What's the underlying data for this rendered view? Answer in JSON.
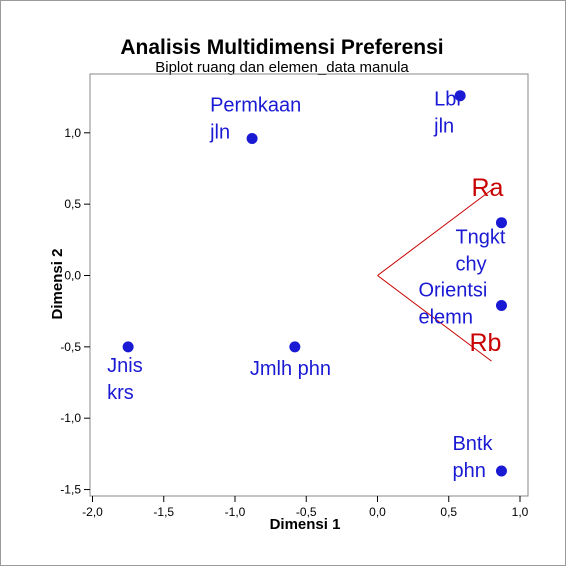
{
  "chart_data": {
    "type": "scatter",
    "title": "Analisis Multidimensi Preferensi",
    "subtitle": "Biplot ruang dan elemen_data manula",
    "xlabel": "Dimensi 1",
    "ylabel": "Dimensi 2",
    "xlim": [
      -2.0,
      1.0
    ],
    "ylim": [
      -1.5,
      1.35
    ],
    "xticks": [
      -2.0,
      -1.5,
      -1.0,
      -0.5,
      0.0,
      0.5,
      1.0
    ],
    "xtick_labels": [
      "-2,0",
      "-1,5",
      "-1,0",
      "-0,5",
      "0,0",
      "0,5",
      "1,0"
    ],
    "yticks": [
      1.0,
      0.5,
      0.0,
      -0.5,
      -1.0,
      -1.5
    ],
    "ytick_labels": [
      "1,0",
      "0,5",
      "0,0",
      "-0,5",
      "-1,0",
      "-1,5"
    ],
    "grid": false,
    "colors": {
      "points": "#1a1ad4",
      "vectors": "#c80000"
    },
    "points": [
      {
        "label_lines": [
          "Permkaan",
          "jln"
        ],
        "x": -0.88,
        "y": 0.96
      },
      {
        "label_lines": [
          "Lbr",
          "jln"
        ],
        "x": 0.58,
        "y": 1.26
      },
      {
        "label_lines": [
          "Tngkt",
          "chy"
        ],
        "x": 0.87,
        "y": 0.37
      },
      {
        "label_lines": [
          "Orientsi",
          "elemn"
        ],
        "x": 0.87,
        "y": -0.21
      },
      {
        "label_lines": [
          "Jnis",
          "krs"
        ],
        "x": -1.75,
        "y": -0.5
      },
      {
        "label_lines": [
          "Jmlh phn"
        ],
        "x": -0.58,
        "y": -0.5
      },
      {
        "label_lines": [
          "Bntk",
          "phn"
        ],
        "x": 0.87,
        "y": -1.37
      }
    ],
    "vectors": [
      {
        "name": "Ra",
        "x": 0.8,
        "y": 0.6
      },
      {
        "name": "Rb",
        "x": 0.8,
        "y": -0.6
      }
    ]
  }
}
